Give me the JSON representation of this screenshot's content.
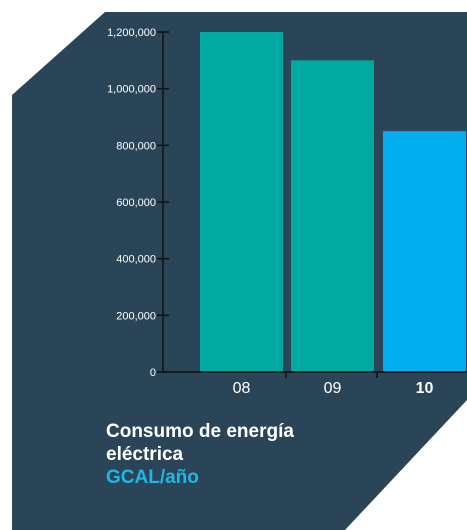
{
  "chart_data": {
    "type": "bar",
    "categories": [
      "08",
      "09",
      "10"
    ],
    "values": [
      1200000,
      1100000,
      850000
    ],
    "highlight_index": 2,
    "ylim": [
      0,
      1200000
    ],
    "y_ticks": [
      "0",
      "200,000",
      "400,000",
      "600,000",
      "800,000",
      "1,000,000",
      "1,200,000"
    ],
    "y_tick_values": [
      0,
      200000,
      400000,
      600000,
      800000,
      1000000,
      1200000
    ],
    "grid": false
  },
  "caption": {
    "line1": "Consumo de energía",
    "line2": "eléctrica",
    "unit": "GCAL/año"
  },
  "colors": {
    "panel": "#2b4558",
    "bar": "#00aaa0",
    "bar_highlight": "#00aeef",
    "axis": "#111111",
    "text": "#ffffff"
  }
}
